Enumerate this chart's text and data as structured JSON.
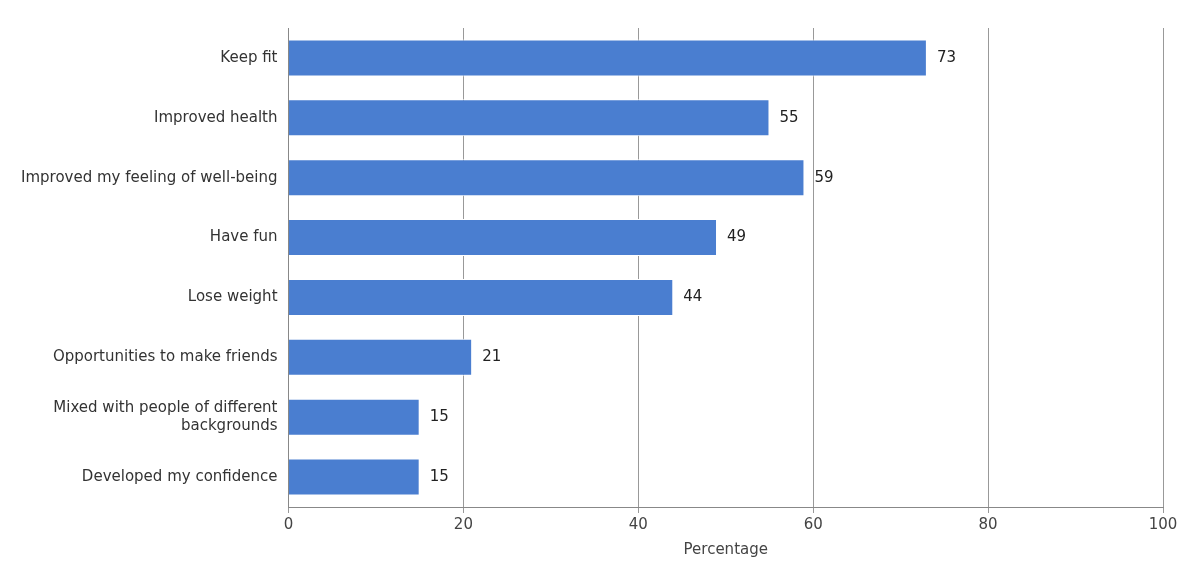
{
  "chart_data": {
    "type": "bar",
    "orientation": "horizontal",
    "xlabel": "Percentage",
    "categories": [
      "Keep fit",
      "Improved health",
      "Improved my feeling of well-being",
      "Have fun",
      "Lose weight",
      "Opportunities to make friends",
      "Mixed with people of different backgrounds",
      "Developed my confidence"
    ],
    "values": [
      73,
      55,
      59,
      49,
      44,
      21,
      15,
      15
    ],
    "color": "#4a7ed0",
    "xlim": [
      0,
      100
    ],
    "xticks": [
      0,
      20,
      40,
      60,
      80,
      100
    ],
    "grid": "x",
    "data_labels": true,
    "legend": false
  }
}
